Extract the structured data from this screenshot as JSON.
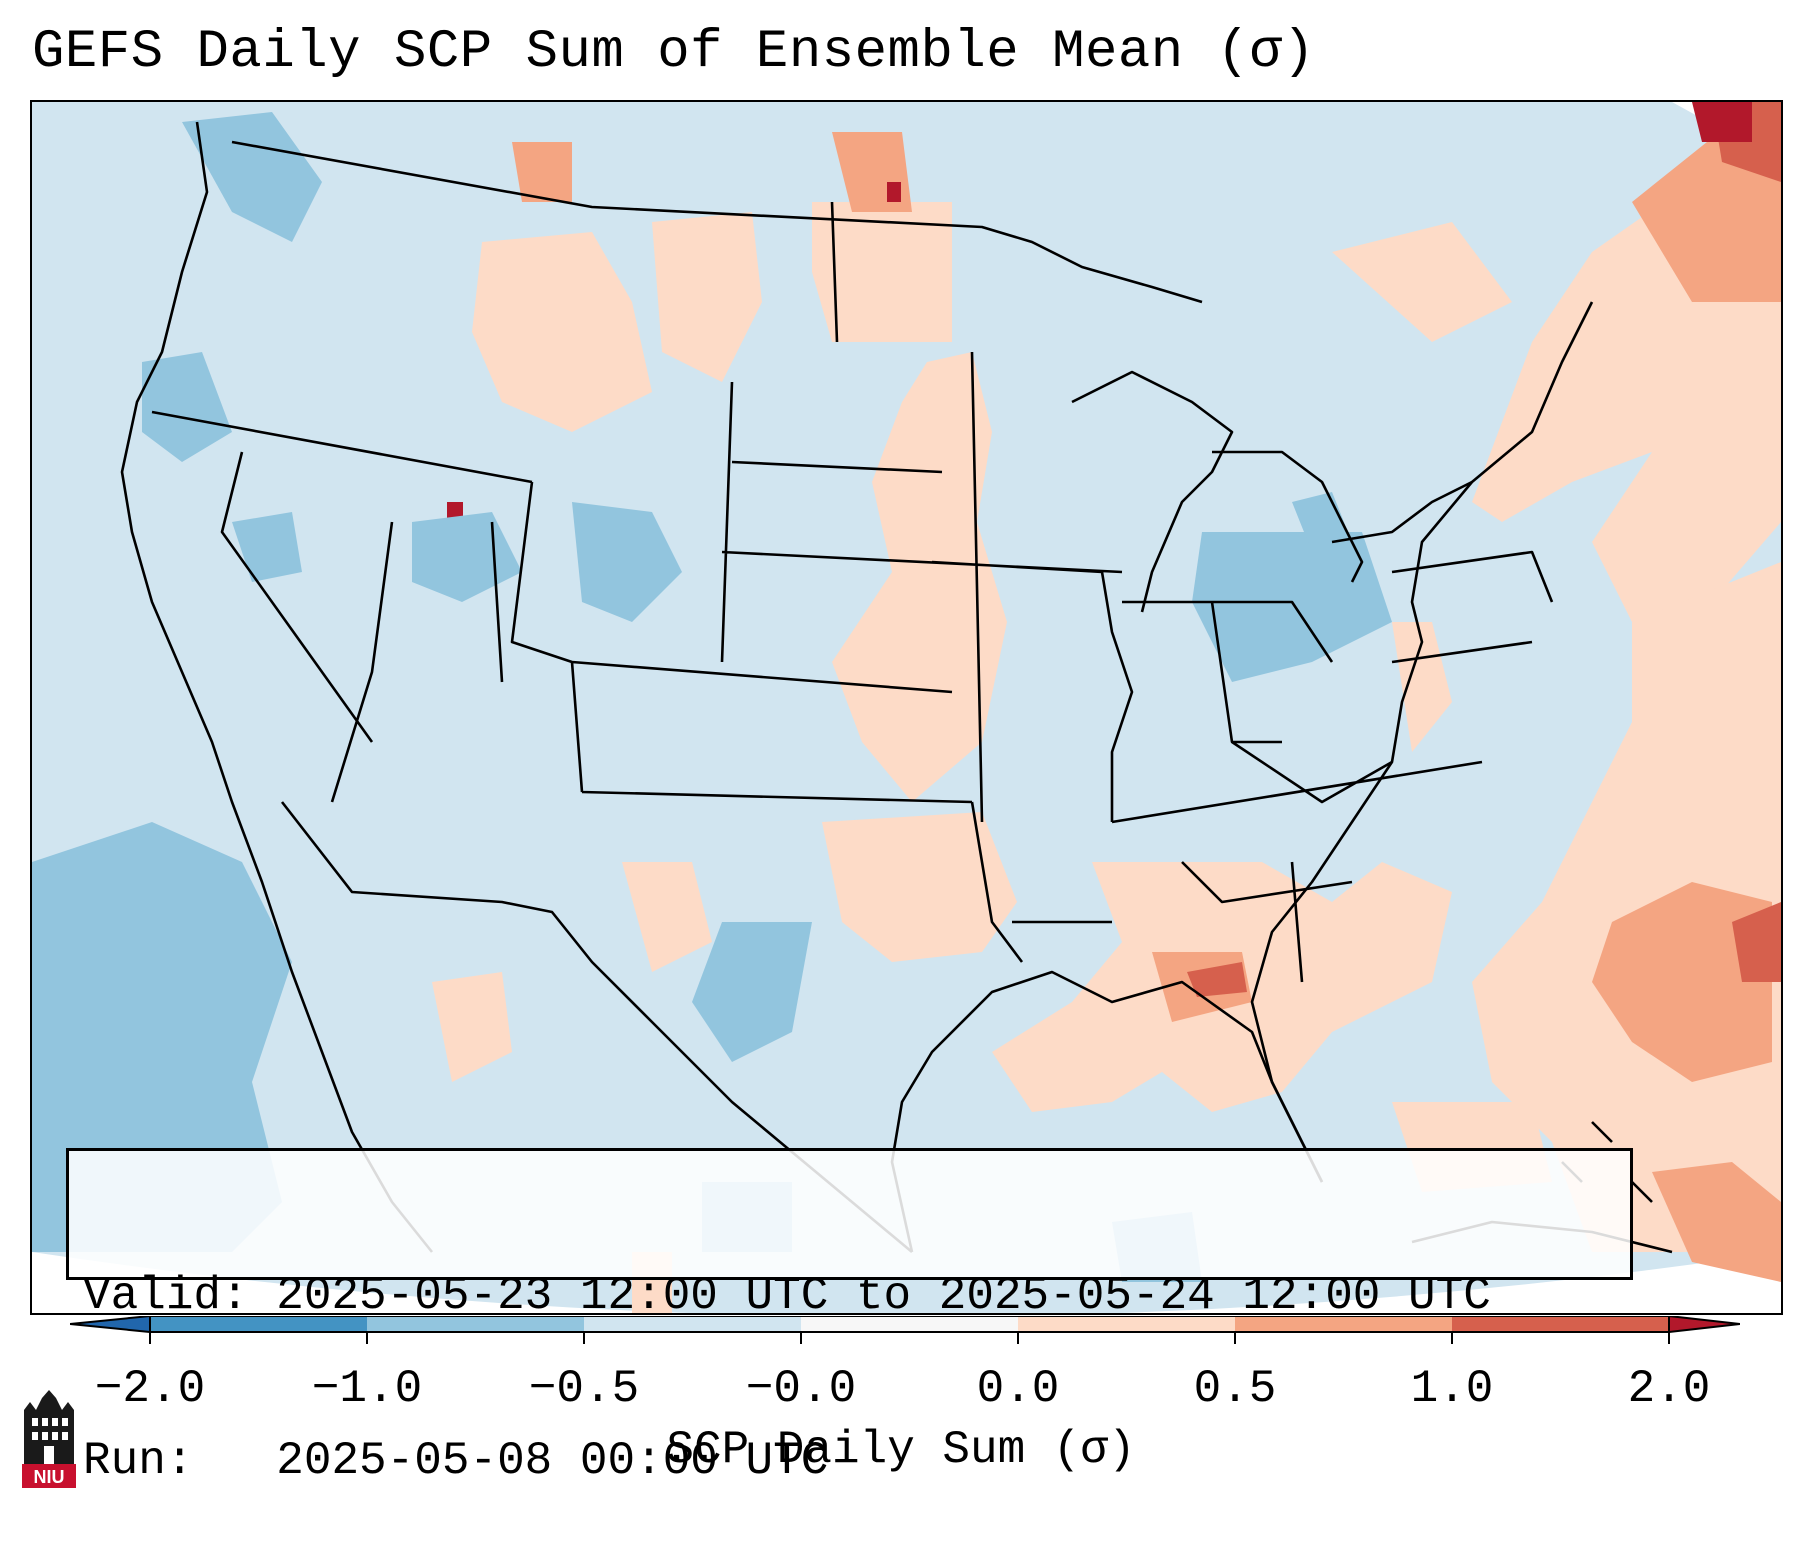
{
  "title": "GEFS Daily SCP Sum of Ensemble Mean (σ)",
  "info_box": {
    "valid_line": "Valid: 2025-05-23 12:00 UTC to 2025-05-24 12:00 UTC",
    "run_line": "Run:   2025-05-08 00:00 UTC"
  },
  "colorbar": {
    "label": "SCP Daily Sum (σ)",
    "ticks": [
      "−2.0",
      "−1.0",
      "−0.5",
      "−0.0",
      "0.0",
      "0.5",
      "1.0",
      "2.0"
    ],
    "bins": [
      {
        "range": "< -2.0",
        "color": "#2166ac"
      },
      {
        "range": "-2.0 to -1.0",
        "color": "#4393c3"
      },
      {
        "range": "-1.0 to -0.5",
        "color": "#92c5de"
      },
      {
        "range": "-0.5 to 0.0",
        "color": "#d1e5f0"
      },
      {
        "range": "0.0 to 0.0",
        "color": "#f7f7f7"
      },
      {
        "range": "0.0 to 0.5",
        "color": "#fddbc7"
      },
      {
        "range": "0.5 to 1.0",
        "color": "#f4a582"
      },
      {
        "range": "1.0 to 2.0",
        "color": "#d6604d"
      },
      {
        "range": "> 2.0",
        "color": "#b2182b"
      }
    ]
  },
  "map": {
    "background_color": "#d1e5f0",
    "anomaly_regions": [
      {
        "region": "Upper Mississippi Valley / Northern Plains",
        "category": "0.0 to 0.5"
      },
      {
        "region": "Southern Plains (Oklahoma)",
        "category": "0.0 to 0.5"
      },
      {
        "region": "Lower Mississippi Valley / Gulf Coast",
        "category": "0.0 to 0.5"
      },
      {
        "region": "Southeast Louisiana coast",
        "category": "1.0 to 2.0"
      },
      {
        "region": "Western Atlantic",
        "category": "0.5 to 1.0"
      },
      {
        "region": "Northern Quebec / Maine",
        "category": "> 2.0"
      },
      {
        "region": "Ohio Valley / Indiana",
        "category": "-1.0 to -0.5"
      },
      {
        "region": "West Texas",
        "category": "-1.0 to -0.5"
      },
      {
        "region": "Eastern Pacific",
        "category": "-1.0 to -0.5"
      },
      {
        "region": "Northern Utah",
        "category": "> 2.0"
      }
    ]
  },
  "logo": {
    "text": "NIU",
    "color": "#c8102e"
  }
}
